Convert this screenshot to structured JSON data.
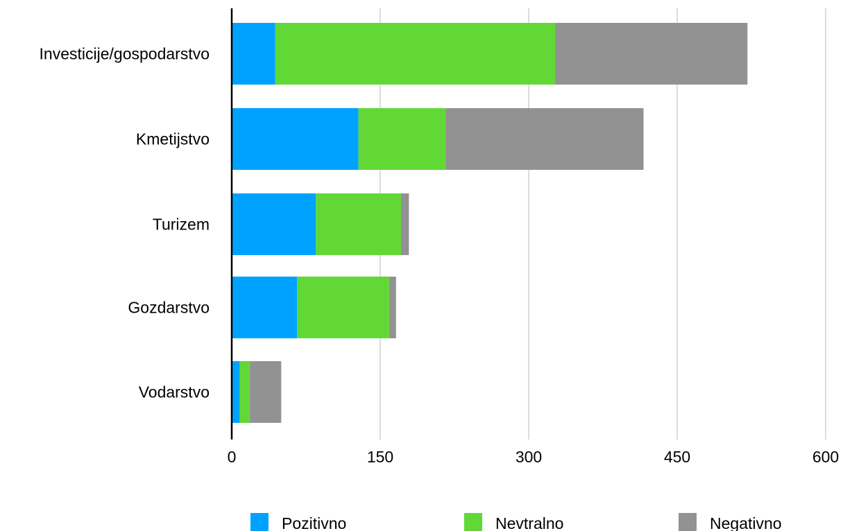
{
  "chart_data": {
    "type": "bar",
    "orientation": "horizontal",
    "stacked": true,
    "categories": [
      "Investicije/gospodarstvo",
      "Kmetijstvo",
      "Turizem",
      "Gozdarstvo",
      "Vodarstvo"
    ],
    "series": [
      {
        "name": "Pozitivno",
        "color": "#00a2ff",
        "values": [
          44,
          128,
          85,
          66,
          8
        ]
      },
      {
        "name": "Nevtralno",
        "color": "#61d836",
        "values": [
          283,
          88,
          86,
          93,
          10
        ]
      },
      {
        "name": "Negativno",
        "color": "#929292",
        "values": [
          194,
          200,
          8,
          7,
          32
        ]
      }
    ],
    "xticks": [
      "0",
      "150",
      "300",
      "450",
      "600"
    ],
    "xlim": [
      0,
      600
    ],
    "grid": true,
    "legend": "bottom"
  }
}
